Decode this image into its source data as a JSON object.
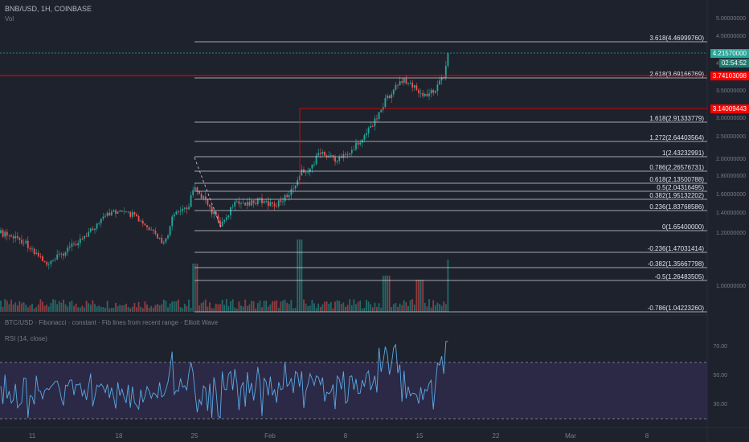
{
  "header": {
    "symbol_line": "BNB/USD, 1H, COINBASE",
    "sub_line": "Vol"
  },
  "indicator_line": "BTC/USD · Fibonacci · constant · Fib lines from recent range · Elliott Wave",
  "rsi_label": "RSI (14, close)",
  "colors": {
    "background": "#1e222d",
    "up_candle": "#26a69a",
    "down_candle": "#ef5350",
    "rsi_line": "#5aa9e6",
    "rsi_band": "#2e2a4a",
    "red_level": "#ff0000",
    "fib_line": "#d1d4dc",
    "price_tag_green": "#26a69a"
  },
  "price_tags": {
    "current_price": "4.21570000",
    "countdown": "02:54:52",
    "red_upper": "3.74103098",
    "red_lower": "3.14009443"
  },
  "fib_levels": [
    {
      "label": "3.618(4.46999760)"
    },
    {
      "label": "2.618(3.69166769)"
    },
    {
      "label": "1.618(2.91333779)"
    },
    {
      "label": "1.272(2.64403564)"
    },
    {
      "label": "1(2.43232991)"
    },
    {
      "label": "0.786(2.26576731)"
    },
    {
      "label": "0.618(2.13500788)"
    },
    {
      "label": "0.5(2.04316495)"
    },
    {
      "label": "0.382(1.95132202)"
    },
    {
      "label": "0.236(1.83768586)"
    },
    {
      "label": "0(1.65400000)"
    },
    {
      "label": "-0.236(1.47031414)"
    },
    {
      "label": "-0.382(1.35667798)"
    },
    {
      "label": "-0.5(1.26483505)"
    },
    {
      "label": "-0.786(1.04223260)"
    }
  ],
  "right_axis_ticks": [
    "5.00000000",
    "4.50000000",
    "4.00000000",
    "3.50000000",
    "3.00000000",
    "2.50000000",
    "2.00000000",
    "1.80000000",
    "1.60000000",
    "1.40000000",
    "1.20000000",
    "1.00000000"
  ],
  "rsi_ticks": [
    "70.00",
    "50.00",
    "30.00"
  ],
  "time_axis": [
    "11",
    "18",
    "25",
    "Feb",
    "8",
    "15",
    "22",
    "Mar",
    "8"
  ]
}
